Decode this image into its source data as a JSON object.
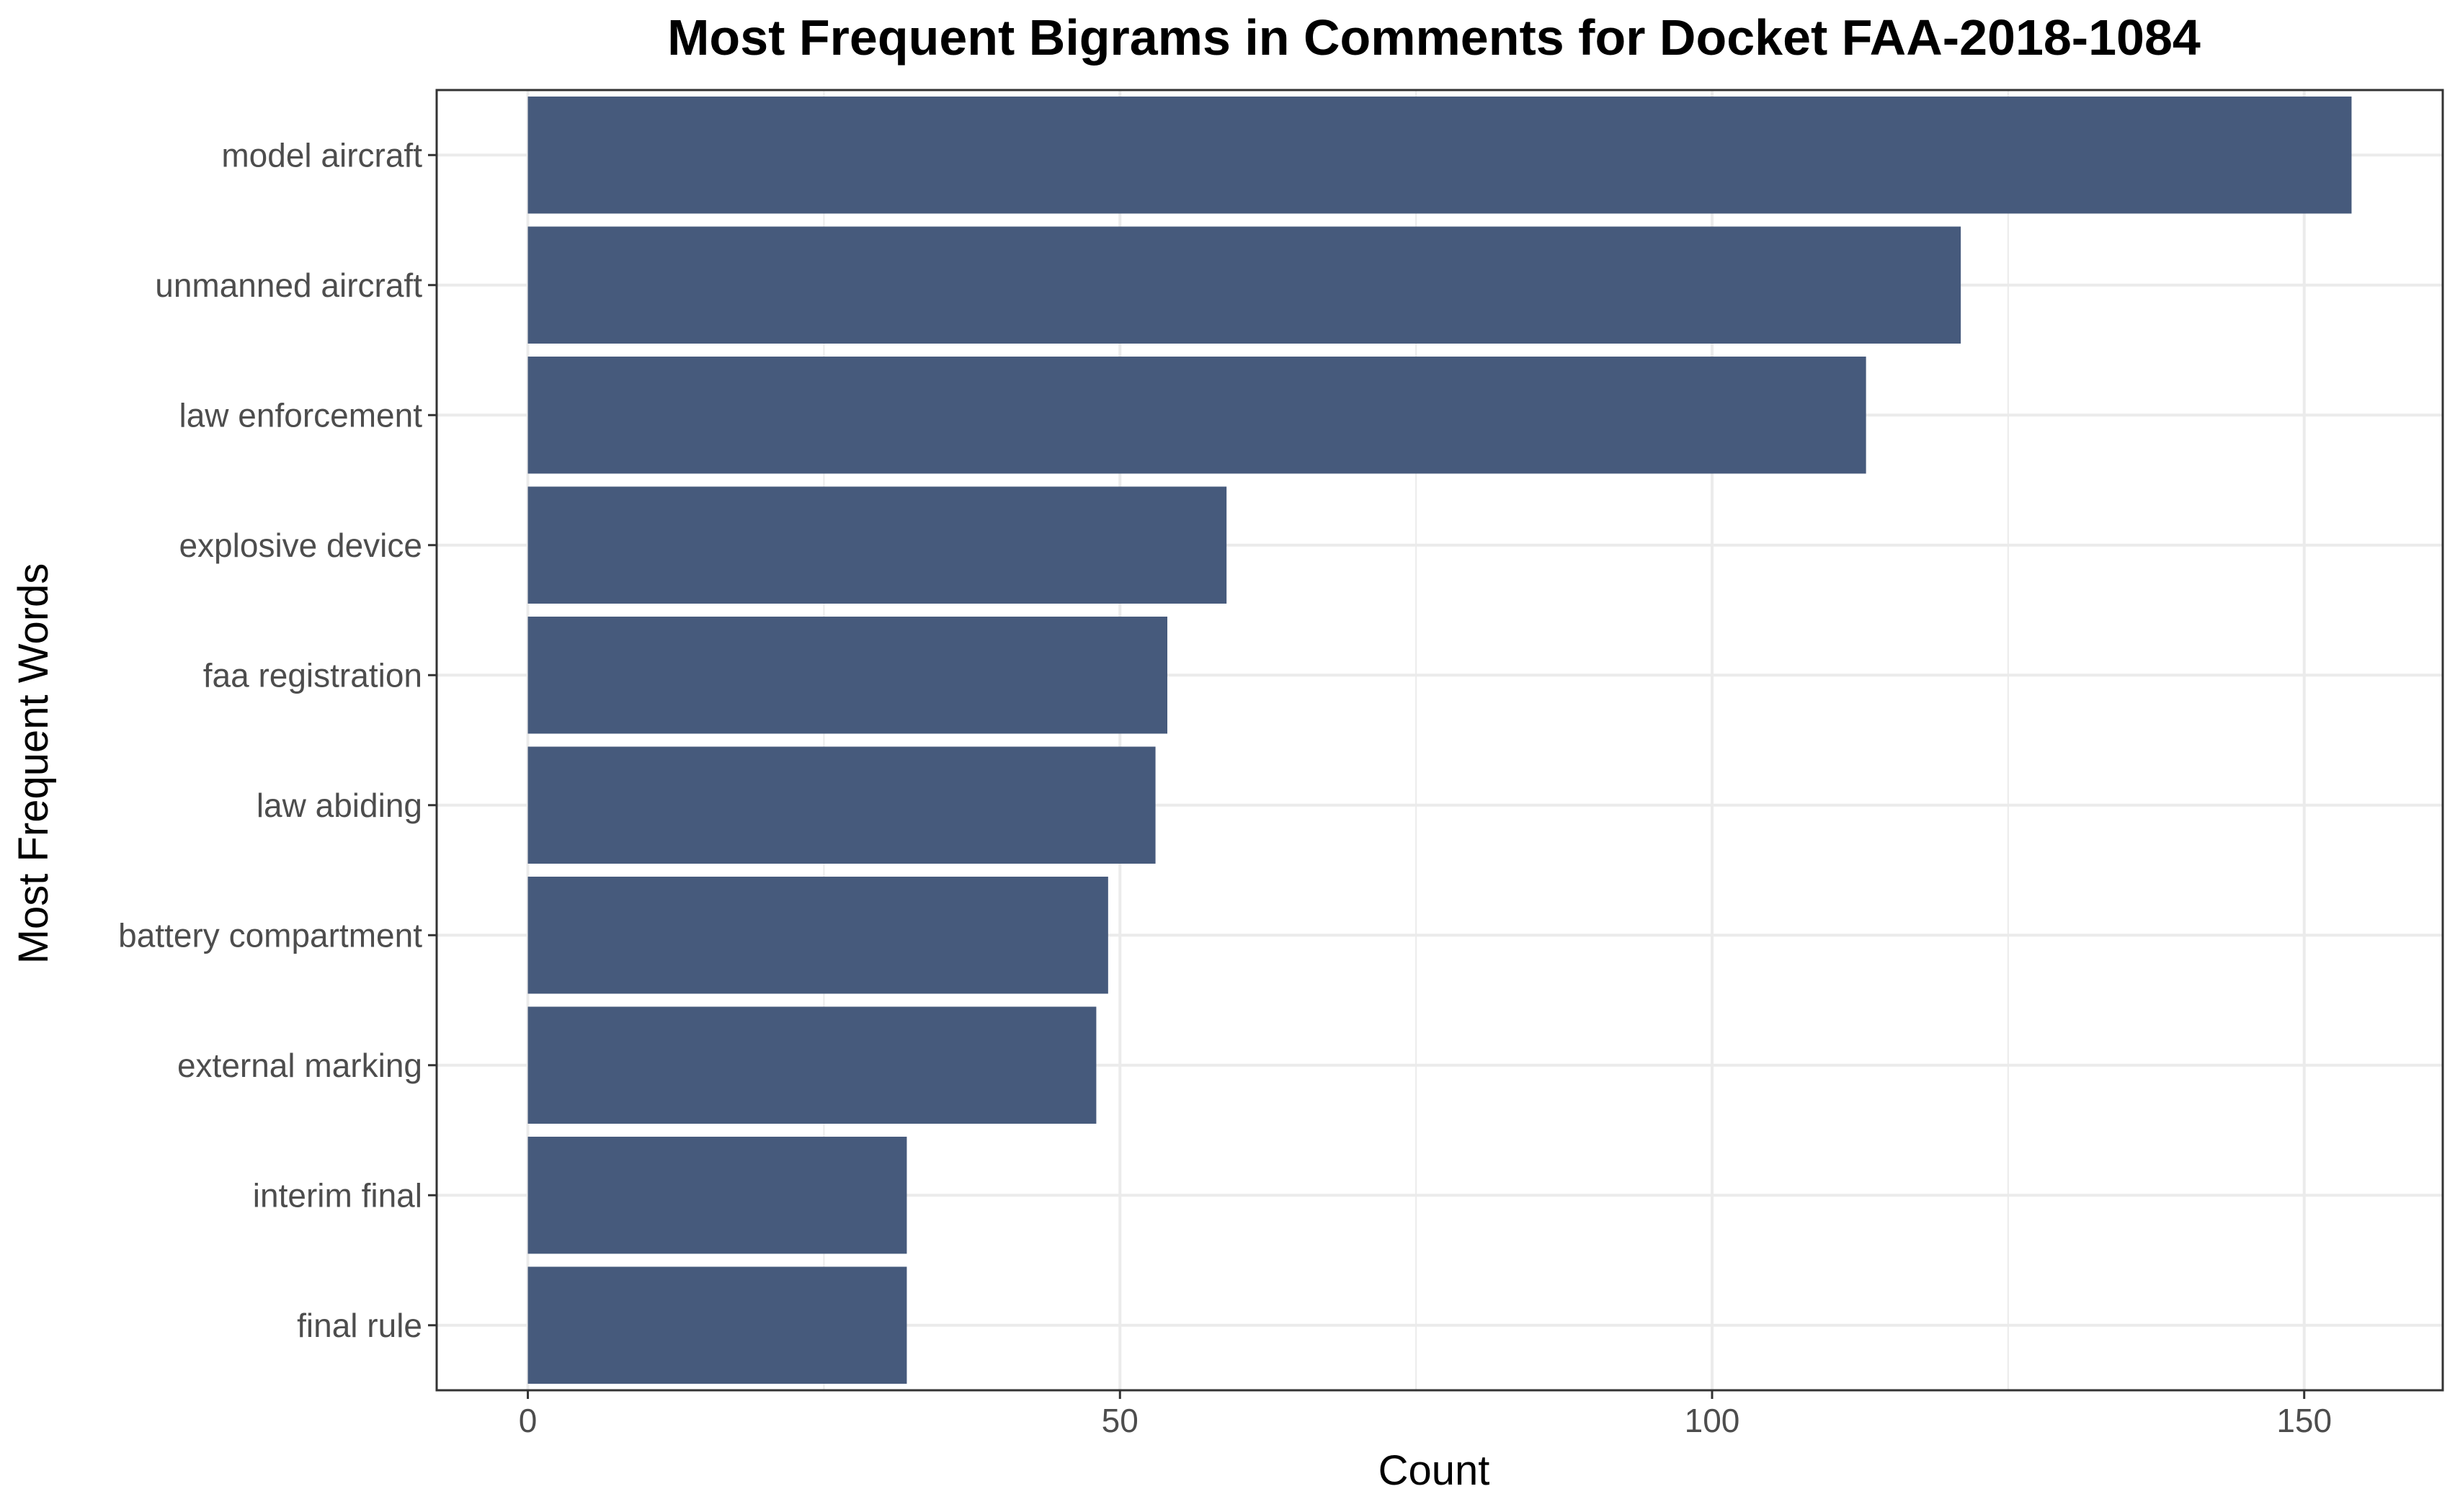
{
  "chart_data": {
    "type": "bar",
    "orientation": "horizontal",
    "title": "Most Frequent Bigrams in Comments for Docket FAA-2018-1084",
    "xlabel": "Count",
    "ylabel": "Most Frequent Words",
    "categories": [
      "model aircraft",
      "unmanned aircraft",
      "law enforcement",
      "explosive device",
      "faa registration",
      "law abiding",
      "battery compartment",
      "external marking",
      "interim final",
      "final rule"
    ],
    "values": [
      154,
      121,
      113,
      59,
      54,
      53,
      49,
      48,
      32,
      32
    ],
    "xlim": [
      -7.7,
      161.7
    ],
    "xticks": [
      0,
      50,
      100,
      150
    ],
    "xtick_labels": [
      "0",
      "50",
      "100",
      "150"
    ],
    "grid": true,
    "legend": "none",
    "colors": {
      "bar": "#465a7c",
      "grid": "#ebebeb",
      "panel_border": "#333333",
      "tick_label": "#4d4d4d"
    }
  }
}
